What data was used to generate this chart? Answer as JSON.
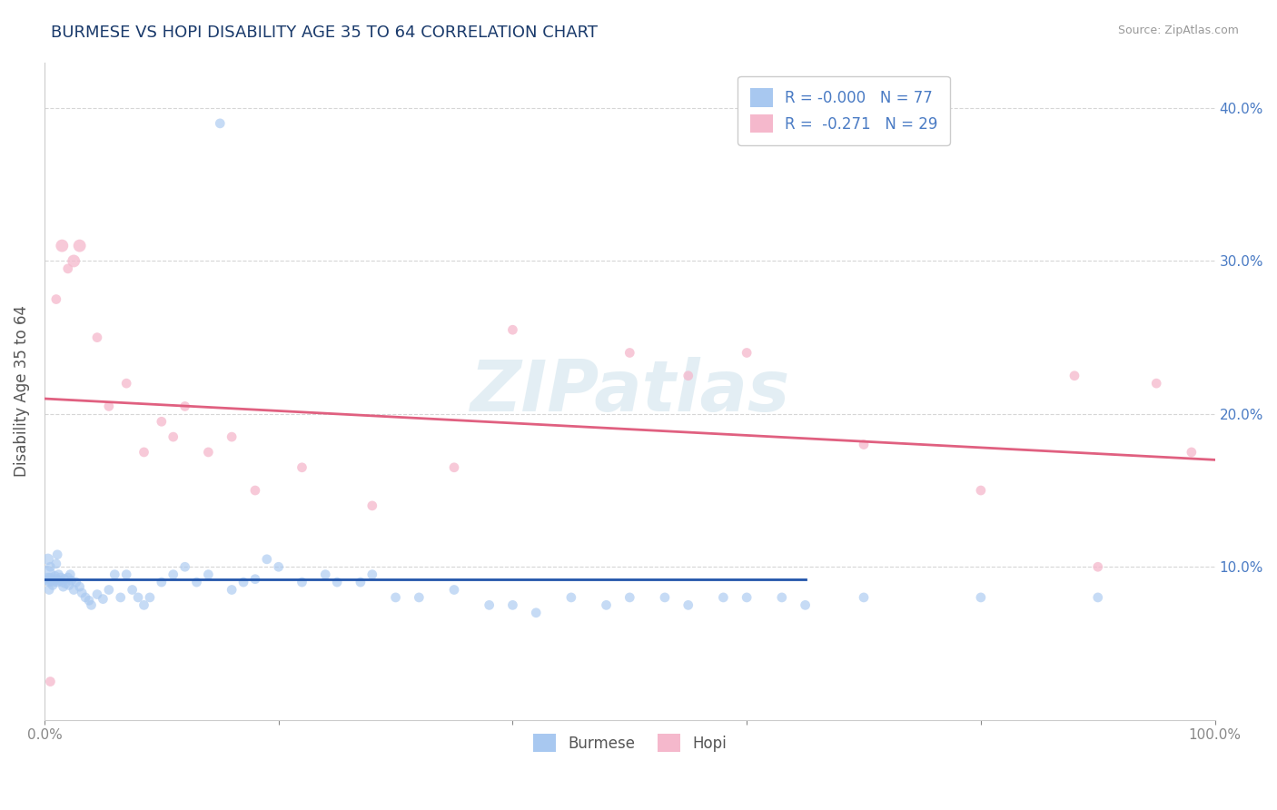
{
  "title": "BURMESE VS HOPI DISABILITY AGE 35 TO 64 CORRELATION CHART",
  "source": "Source: ZipAtlas.com",
  "ylabel": "Disability Age 35 to 64",
  "xlim": [
    0,
    100
  ],
  "ylim": [
    0,
    43
  ],
  "xtick_labels": [
    "0.0%",
    "",
    "",
    "",
    "",
    "100.0%"
  ],
  "xtick_vals": [
    0,
    20,
    40,
    60,
    80,
    100
  ],
  "ytick_labels": [
    "10.0%",
    "20.0%",
    "30.0%",
    "40.0%"
  ],
  "ytick_vals": [
    10,
    20,
    30,
    40
  ],
  "burmese_color": "#a8c8f0",
  "hopi_color": "#f5b8cc",
  "burmese_line_color": "#2255aa",
  "hopi_line_color": "#e06080",
  "burmese_R": "-0.000",
  "burmese_N": 77,
  "hopi_R": "-0.271",
  "hopi_N": 29,
  "watermark": "ZIPatlas",
  "background_color": "#ffffff",
  "grid_color": "#cccccc",
  "title_color": "#1a3a6b",
  "axis_label_color": "#4a7bc4",
  "tick_color": "#888888",
  "burmese_line_end_x": 65,
  "hopi_line_intercept": 21.0,
  "hopi_line_end_y": 17.0,
  "burmese_line_y": 9.2,
  "burmese_x": [
    0.2,
    0.3,
    0.3,
    0.4,
    0.4,
    0.5,
    0.5,
    0.6,
    0.7,
    0.8,
    0.9,
    1.0,
    1.0,
    1.1,
    1.1,
    1.2,
    1.3,
    1.4,
    1.5,
    1.6,
    1.7,
    1.8,
    2.0,
    2.1,
    2.2,
    2.3,
    2.5,
    2.7,
    3.0,
    3.2,
    3.5,
    3.8,
    4.0,
    4.5,
    5.0,
    5.5,
    6.0,
    6.5,
    7.0,
    7.5,
    8.0,
    8.5,
    9.0,
    10.0,
    11.0,
    12.0,
    13.0,
    14.0,
    15.0,
    16.0,
    17.0,
    18.0,
    19.0,
    20.0,
    22.0,
    24.0,
    25.0,
    27.0,
    28.0,
    30.0,
    32.0,
    35.0,
    38.0,
    40.0,
    42.0,
    45.0,
    48.0,
    50.0,
    53.0,
    55.0,
    58.0,
    60.0,
    63.0,
    65.0,
    70.0,
    80.0,
    90.0
  ],
  "burmese_y": [
    9.5,
    9.2,
    10.5,
    9.0,
    8.5,
    9.3,
    10.0,
    9.1,
    8.8,
    9.0,
    9.4,
    9.2,
    10.2,
    9.0,
    10.8,
    9.5,
    9.1,
    9.3,
    9.0,
    8.7,
    9.2,
    8.9,
    9.3,
    8.8,
    9.5,
    9.1,
    8.5,
    9.0,
    8.7,
    8.3,
    8.0,
    7.8,
    7.5,
    8.2,
    7.9,
    8.5,
    9.5,
    8.0,
    9.5,
    8.5,
    8.0,
    7.5,
    8.0,
    9.0,
    9.5,
    10.0,
    9.0,
    9.5,
    39.0,
    8.5,
    9.0,
    9.2,
    10.5,
    10.0,
    9.0,
    9.5,
    9.0,
    9.0,
    9.5,
    8.0,
    8.0,
    8.5,
    7.5,
    7.5,
    7.0,
    8.0,
    7.5,
    8.0,
    8.0,
    7.5,
    8.0,
    8.0,
    8.0,
    7.5,
    8.0,
    8.0,
    8.0
  ],
  "burmese_size": [
    200,
    100,
    80,
    60,
    60,
    60,
    60,
    60,
    60,
    60,
    60,
    60,
    60,
    60,
    60,
    60,
    60,
    60,
    60,
    60,
    60,
    60,
    60,
    60,
    60,
    60,
    60,
    60,
    60,
    60,
    60,
    60,
    60,
    60,
    60,
    60,
    60,
    60,
    60,
    60,
    60,
    60,
    60,
    60,
    60,
    60,
    60,
    60,
    60,
    60,
    60,
    60,
    60,
    60,
    60,
    60,
    60,
    60,
    60,
    60,
    60,
    60,
    60,
    60,
    60,
    60,
    60,
    60,
    60,
    60,
    60,
    60,
    60,
    60,
    60,
    60,
    60
  ],
  "hopi_x": [
    0.5,
    1.0,
    1.5,
    2.0,
    2.5,
    3.0,
    4.5,
    5.5,
    7.0,
    8.5,
    10.0,
    11.0,
    12.0,
    14.0,
    16.0,
    18.0,
    22.0,
    28.0,
    35.0,
    40.0,
    50.0,
    55.0,
    60.0,
    70.0,
    80.0,
    88.0,
    90.0,
    95.0,
    98.0
  ],
  "hopi_y": [
    2.5,
    27.5,
    31.0,
    29.5,
    30.0,
    31.0,
    25.0,
    20.5,
    22.0,
    17.5,
    19.5,
    18.5,
    20.5,
    17.5,
    18.5,
    15.0,
    16.5,
    14.0,
    16.5,
    25.5,
    24.0,
    22.5,
    24.0,
    18.0,
    15.0,
    22.5,
    10.0,
    22.0,
    17.5
  ],
  "hopi_size": [
    60,
    60,
    100,
    60,
    100,
    100,
    60,
    60,
    60,
    60,
    60,
    60,
    60,
    60,
    60,
    60,
    60,
    60,
    60,
    60,
    60,
    60,
    60,
    60,
    60,
    60,
    60,
    60,
    60
  ]
}
